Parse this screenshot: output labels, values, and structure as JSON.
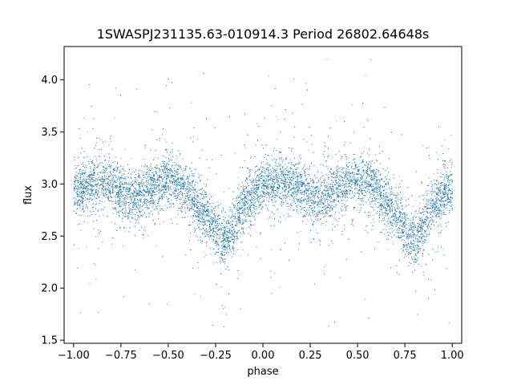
{
  "chart_data": {
    "type": "scatter",
    "title": "1SWASPJ231135.63-010914.3 Period 26802.64648s",
    "xlabel": "phase",
    "ylabel": "flux",
    "xlim": [
      -1.05,
      1.05
    ],
    "ylim": [
      1.47,
      4.32
    ],
    "xticks": [
      -1.0,
      -0.75,
      -0.5,
      -0.25,
      0.0,
      0.25,
      0.5,
      0.75,
      1.0
    ],
    "xtick_labels": [
      "−1.00",
      "−0.75",
      "−0.50",
      "−0.25",
      "0.00",
      "0.25",
      "0.50",
      "0.75",
      "1.00"
    ],
    "yticks": [
      1.5,
      2.0,
      2.5,
      3.0,
      3.5,
      4.0
    ],
    "ytick_labels": [
      "1.5",
      "2.0",
      "2.5",
      "3.0",
      "3.5",
      "4.0"
    ],
    "grid": false,
    "legend": "none",
    "point_color": "#1f77b4",
    "series": [
      {
        "x_range": [
          -1.0,
          1.0
        ],
        "approx_point_count": 26000,
        "baseline_flux": 3.0,
        "typical_scatter": 0.12,
        "trend": {
          "phase": [
            -1.0,
            -0.9,
            -0.8,
            -0.7,
            -0.6,
            -0.5,
            -0.45,
            -0.4,
            -0.3,
            -0.25,
            -0.2,
            -0.15,
            -0.1,
            0.0,
            0.1,
            0.2,
            0.3,
            0.4,
            0.5,
            0.55,
            0.6,
            0.7,
            0.75,
            0.8,
            0.85,
            0.9,
            1.0
          ],
          "flux": [
            2.92,
            3.02,
            3.0,
            2.86,
            2.97,
            3.03,
            3.0,
            2.93,
            2.7,
            2.55,
            2.45,
            2.62,
            2.83,
            2.97,
            3.02,
            2.96,
            2.86,
            2.97,
            3.03,
            3.0,
            2.93,
            2.7,
            2.55,
            2.45,
            2.62,
            2.83,
            2.97
          ]
        }
      }
    ]
  }
}
